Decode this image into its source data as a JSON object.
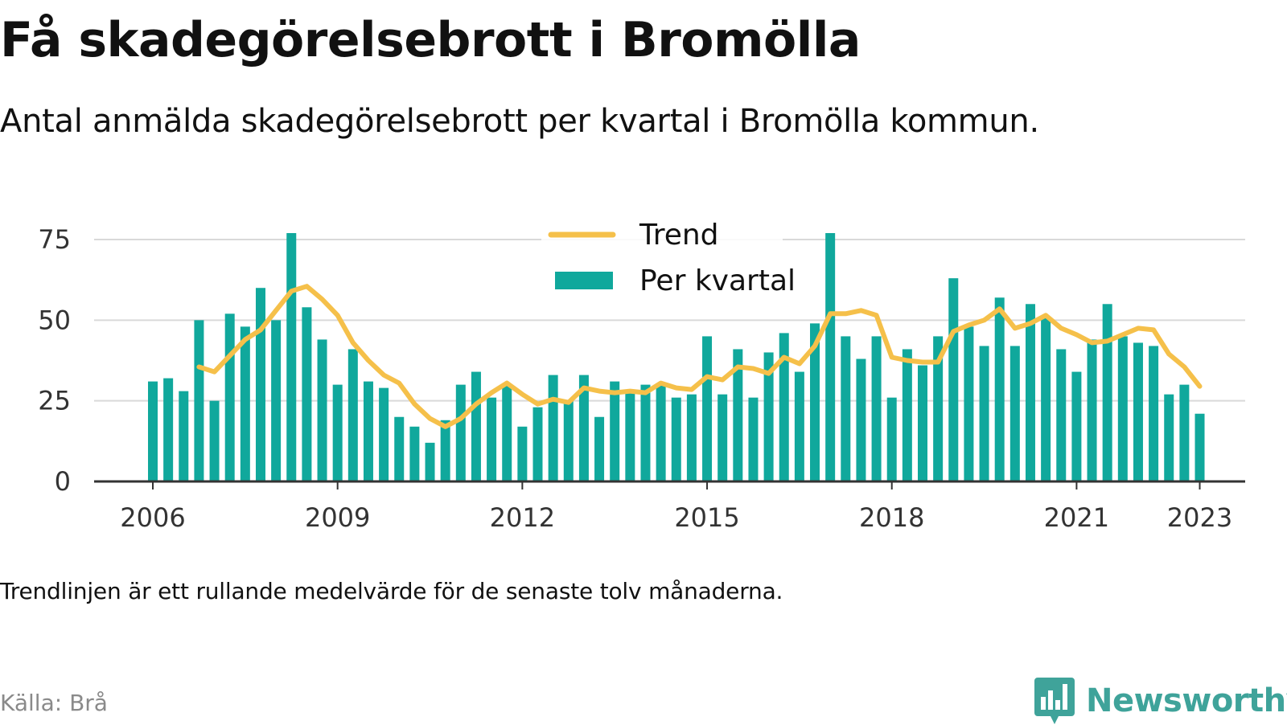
{
  "title": "Få skadegörelsebrott i Bromölla",
  "subtitle": "Antal anmälda skadegörelsebrott per kvartal i Bromölla kommun.",
  "footnote": "Trendlinjen är ett rullande medelvärde för de senaste tolv månaderna.",
  "source": "Källa: Brå",
  "brand": {
    "name": "Newsworthy",
    "icon": "newsworthy-bar-chart-icon",
    "color": "#3fa39a"
  },
  "colors": {
    "bars": "#10a89c",
    "trend": "#f5c04a",
    "grid": "#d9d9d9",
    "axis": "#333333",
    "text": "#111111"
  },
  "chart_data": {
    "type": "bar",
    "x_unit": "quarter",
    "x_start": "2006-Q1",
    "ylim": [
      0,
      76
    ],
    "yticks": [
      0,
      25,
      50,
      75
    ],
    "xticks": [
      "2006",
      "2009",
      "2012",
      "2015",
      "2018",
      "2021",
      "2023"
    ],
    "grid": true,
    "legend_position": "top-center",
    "series": [
      {
        "name": "Per kvartal",
        "type": "bar",
        "values": [
          31,
          32,
          28,
          50,
          25,
          52,
          48,
          60,
          50,
          77,
          54,
          44,
          30,
          41,
          31,
          29,
          20,
          17,
          12,
          19,
          30,
          34,
          26,
          30,
          17,
          23,
          33,
          25,
          33,
          20,
          31,
          28,
          30,
          30,
          26,
          27,
          45,
          27,
          41,
          26,
          40,
          46,
          34,
          49,
          77,
          45,
          38,
          45,
          26,
          41,
          36,
          45,
          63,
          48,
          42,
          57,
          42,
          55,
          51,
          41,
          34,
          44,
          55,
          45,
          43,
          42,
          27,
          30,
          21
        ]
      },
      {
        "name": "Trend",
        "type": "line",
        "values": [
          null,
          null,
          null,
          35.5,
          34,
          39,
          44,
          47,
          53,
          59,
          60.5,
          56.5,
          51.5,
          43,
          37.5,
          33,
          30.5,
          24,
          19.5,
          17,
          19.5,
          24,
          27.5,
          30.5,
          27,
          24,
          25.5,
          24.5,
          29,
          28,
          27.5,
          28,
          27.5,
          30.5,
          29,
          28.5,
          32.5,
          31.5,
          35.5,
          35,
          33.5,
          38.5,
          36.5,
          42,
          52,
          52,
          53,
          51.5,
          38.5,
          37.5,
          37,
          37,
          46.5,
          48.5,
          50,
          53.5,
          47.5,
          49,
          51.5,
          47.5,
          45.5,
          43,
          43.5,
          45.5,
          47.5,
          47,
          39.5,
          35.5,
          29.5
        ]
      }
    ]
  }
}
